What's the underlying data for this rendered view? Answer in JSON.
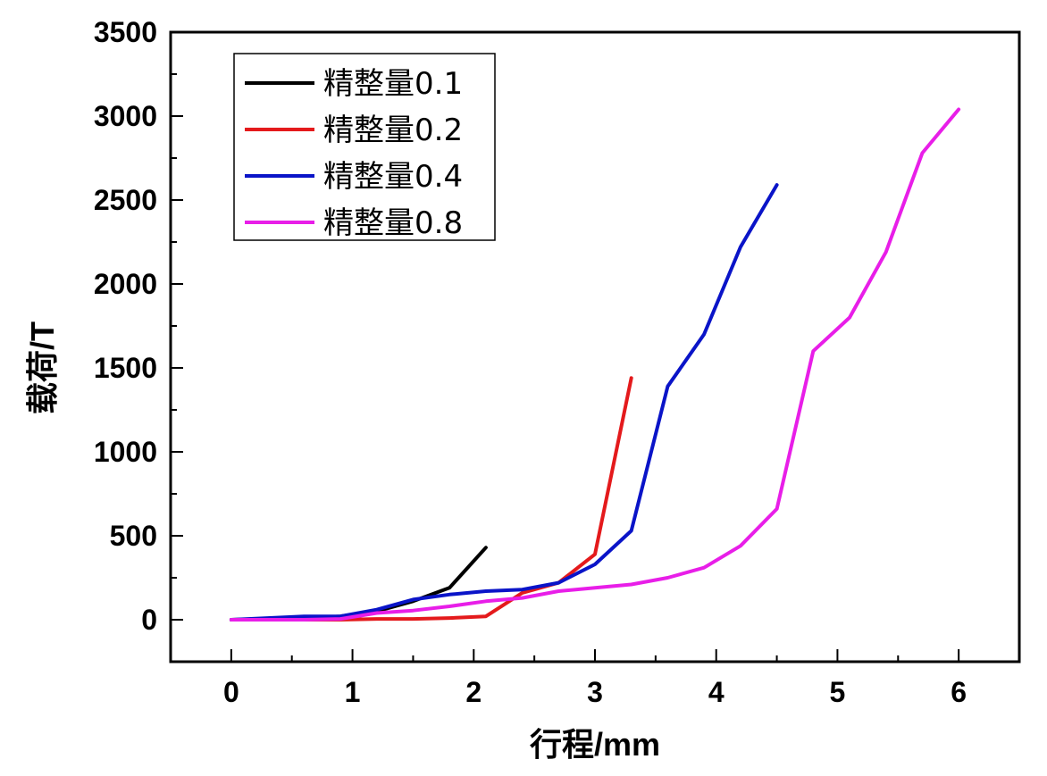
{
  "chart_data": {
    "type": "line",
    "xlabel": "行程/mm",
    "ylabel": "载荷/T",
    "xlim": [
      -0.5,
      6.5
    ],
    "ylim": [
      -250,
      3500
    ],
    "xticks": [
      0,
      1,
      2,
      3,
      4,
      5,
      6
    ],
    "yticks": [
      0,
      500,
      1000,
      1500,
      2000,
      2500,
      3000,
      3500
    ],
    "grid": false,
    "legend": "top-left",
    "series": [
      {
        "name": "精整量0.1",
        "color": "#000000",
        "x": [
          0,
          0.3,
          0.6,
          0.9,
          1.2,
          1.5,
          1.8,
          2.1
        ],
        "y": [
          0,
          5,
          10,
          20,
          50,
          110,
          190,
          430
        ]
      },
      {
        "name": "精整量0.2",
        "color": "#e41a1c",
        "x": [
          0,
          0.3,
          0.6,
          0.9,
          1.2,
          1.5,
          1.8,
          2.1,
          2.4,
          2.7,
          3.0,
          3.3
        ],
        "y": [
          0,
          0,
          0,
          0,
          5,
          5,
          10,
          20,
          160,
          220,
          390,
          1440
        ]
      },
      {
        "name": "精整量0.4",
        "color": "#0a14c8",
        "x": [
          0,
          0.3,
          0.6,
          0.9,
          1.2,
          1.5,
          1.8,
          2.1,
          2.4,
          2.7,
          3.0,
          3.3,
          3.6,
          3.9,
          4.2,
          4.5
        ],
        "y": [
          0,
          10,
          20,
          20,
          60,
          120,
          150,
          170,
          180,
          220,
          330,
          530,
          1390,
          1700,
          2220,
          2590
        ]
      },
      {
        "name": "精整量0.8",
        "color": "#e81ee8",
        "x": [
          0,
          0.3,
          0.6,
          0.9,
          1.2,
          1.5,
          1.8,
          2.1,
          2.4,
          2.7,
          3.0,
          3.3,
          3.6,
          3.9,
          4.2,
          4.5,
          4.8,
          5.1,
          5.4,
          5.7,
          6.0
        ],
        "y": [
          0,
          0,
          0,
          5,
          40,
          55,
          80,
          110,
          130,
          170,
          190,
          210,
          250,
          310,
          440,
          660,
          1600,
          1800,
          2190,
          2780,
          3040
        ]
      }
    ]
  }
}
